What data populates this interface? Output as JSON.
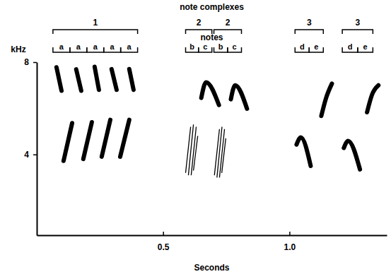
{
  "chart_data": {
    "type": "spectrogram",
    "x_label": "Seconds",
    "y_label": "kHz",
    "xlim": [
      0,
      1.385
    ],
    "ylim": [
      0.5,
      8
    ],
    "xticks": [
      0.5,
      {
        "value": 1,
        "label": "1.0"
      }
    ],
    "yticks": [
      4,
      8
    ],
    "color": "#000000",
    "elements": [
      {
        "x": [
          0.078,
          0.098
        ],
        "y": [
          7.78,
          6.76
        ],
        "line_style": "solid"
      },
      {
        "x": [
          0.106,
          0.14
        ],
        "y": [
          3.72,
          5.36
        ],
        "line_style": "solid"
      },
      {
        "x": [
          0.156,
          0.176
        ],
        "y": [
          7.69,
          6.76
        ],
        "line_style": "solid"
      },
      {
        "x": [
          0.184,
          0.218
        ],
        "y": [
          3.8,
          5.4
        ],
        "line_style": "solid"
      },
      {
        "x": [
          0.229,
          0.246
        ],
        "y": [
          7.8,
          6.8
        ],
        "line_style": "solid"
      },
      {
        "x": [
          0.257,
          0.291
        ],
        "y": [
          3.9,
          5.5
        ],
        "line_style": "solid"
      },
      {
        "x": [
          0.296,
          0.316
        ],
        "y": [
          7.7,
          6.8
        ],
        "line_style": "solid"
      },
      {
        "x": [
          0.33,
          0.366
        ],
        "y": [
          3.9,
          5.5
        ],
        "line_style": "solid"
      },
      {
        "x": [
          0.366,
          0.383
        ],
        "y": [
          7.7,
          6.8
        ],
        "line_style": "solid"
      },
      {
        "x": [
          0.589,
          0.609
        ],
        "y": [
          3.2,
          5.2
        ],
        "line_style": "thin"
      },
      {
        "x": [
          0.6,
          0.62
        ],
        "y": [
          3.1,
          5.3
        ],
        "line_style": "thin"
      },
      {
        "x": [
          0.611,
          0.631
        ],
        "y": [
          3.1,
          5.2
        ],
        "line_style": "thin"
      },
      {
        "x": [
          0.62,
          0.637
        ],
        "y": [
          3.3,
          4.8
        ],
        "line_style": "thin"
      },
      {
        "x": [
          0.651,
          0.67,
          0.721
        ],
        "y": [
          6.45,
          7.13,
          6.14
        ],
        "line_style": "solid"
      },
      {
        "x": [
          0.703,
          0.723
        ],
        "y": [
          3.1,
          5.1
        ],
        "line_style": "thin"
      },
      {
        "x": [
          0.713,
          0.733
        ],
        "y": [
          3.0,
          5.2
        ],
        "line_style": "thin"
      },
      {
        "x": [
          0.723,
          0.743
        ],
        "y": [
          3.0,
          5.1
        ],
        "line_style": "thin"
      },
      {
        "x": [
          0.732,
          0.748
        ],
        "y": [
          3.2,
          4.7
        ],
        "line_style": "thin"
      },
      {
        "x": [
          0.768,
          0.785,
          0.832
        ],
        "y": [
          6.39,
          7.0,
          5.98
        ],
        "line_style": "solid"
      },
      {
        "x": [
          1.028,
          1.045,
          1.084
        ],
        "y": [
          4.43,
          4.74,
          3.5
        ],
        "line_style": "solid"
      },
      {
        "x": [
          1.126,
          1.145,
          1.168
        ],
        "y": [
          5.67,
          6.45,
          7.07
        ],
        "line_style": "solid"
      },
      {
        "x": [
          1.215,
          1.232,
          1.279
        ],
        "y": [
          4.28,
          4.59,
          3.35
        ],
        "line_style": "solid"
      },
      {
        "x": [
          1.307,
          1.327,
          1.352
        ],
        "y": [
          5.83,
          6.6,
          7.0
        ],
        "line_style": "solid"
      }
    ],
    "note_complexes": {
      "label": "note complexes",
      "items": [
        {
          "label": "1",
          "x": [
            0.064,
            0.399
          ]
        },
        {
          "label": "2",
          "x": [
            0.589,
            0.693
          ]
        },
        {
          "label": "2",
          "x": [
            0.701,
            0.81
          ]
        },
        {
          "label": "3",
          "x": [
            1.022,
            1.134
          ]
        },
        {
          "label": "3",
          "x": [
            1.209,
            1.33
          ]
        }
      ]
    },
    "notes": {
      "label": "notes",
      "items": [
        {
          "label": "a",
          "x": [
            0.064,
            0.131
          ]
        },
        {
          "label": "a",
          "x": [
            0.131,
            0.198
          ]
        },
        {
          "label": "a",
          "x": [
            0.198,
            0.265
          ]
        },
        {
          "label": "a",
          "x": [
            0.265,
            0.332
          ]
        },
        {
          "label": "a",
          "x": [
            0.332,
            0.399
          ]
        },
        {
          "label": "b",
          "x": [
            0.589,
            0.64
          ]
        },
        {
          "label": "c",
          "x": [
            0.64,
            0.693
          ]
        },
        {
          "label": "b",
          "x": [
            0.701,
            0.755
          ]
        },
        {
          "label": "c",
          "x": [
            0.755,
            0.81
          ]
        },
        {
          "label": "d",
          "x": [
            1.022,
            1.078
          ]
        },
        {
          "label": "e",
          "x": [
            1.078,
            1.134
          ]
        },
        {
          "label": "d",
          "x": [
            1.209,
            1.27
          ]
        },
        {
          "label": "e",
          "x": [
            1.27,
            1.33
          ]
        }
      ]
    }
  }
}
